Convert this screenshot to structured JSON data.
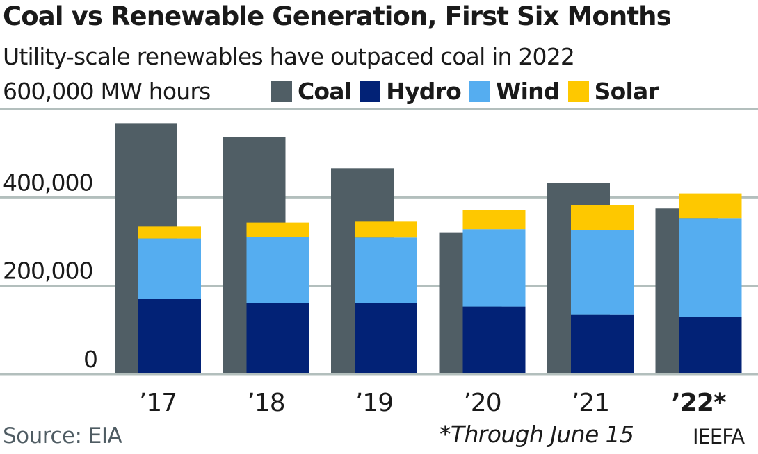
{
  "chart_data": {
    "type": "bar",
    "title": "Coal vs Renewable Generation, First Six Months",
    "subtitle": "Utility-scale renewables have outpaced coal in 2022",
    "ylabel": "600,000 MW hours",
    "xlabel": "",
    "categories": [
      "’17",
      "’18",
      "’19",
      "’20",
      "’21",
      "’22*"
    ],
    "highlight_category": "’22*",
    "ylim": [
      0,
      600000
    ],
    "yticks": [
      {
        "value": 0,
        "label": "0"
      },
      {
        "value": 200000,
        "label": "200,000"
      },
      {
        "value": 400000,
        "label": "400,000"
      },
      {
        "value": 600000,
        "label": ""
      }
    ],
    "grid": true,
    "legend_position": "top-right",
    "layout": "coal bar beside stacked renewables bar",
    "series": [
      {
        "name": "Coal",
        "color": "#505e65",
        "stack": "coal",
        "values": [
          568000,
          537000,
          466000,
          321000,
          433000,
          375000
        ]
      },
      {
        "name": "Hydro",
        "color": "#022276",
        "stack": "renewables",
        "values": [
          170000,
          161000,
          161000,
          153000,
          134000,
          129000
        ]
      },
      {
        "name": "Wind",
        "color": "#55adf0",
        "stack": "renewables",
        "values": [
          137000,
          149000,
          148000,
          175000,
          192000,
          224000
        ]
      },
      {
        "name": "Solar",
        "color": "#fec800",
        "stack": "renewables",
        "values": [
          27000,
          33000,
          36000,
          44000,
          57000,
          56000
        ]
      }
    ]
  },
  "legend": [
    {
      "label": "Coal",
      "color": "#505e65"
    },
    {
      "label": "Hydro",
      "color": "#022276"
    },
    {
      "label": "Wind",
      "color": "#55adf0"
    },
    {
      "label": "Solar",
      "color": "#fec800"
    }
  ],
  "footer": {
    "source": "Source: EIA",
    "note": "*Through June 15",
    "credit": "IEEFA"
  }
}
